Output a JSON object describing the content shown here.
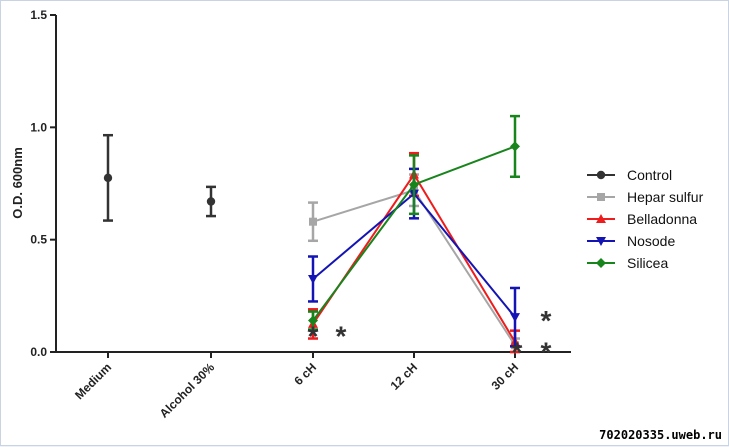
{
  "watermark": "702020335.uweb.ru",
  "chart_data": {
    "type": "line",
    "title": "",
    "xlabel": "",
    "ylabel": "O.D. 600nm",
    "ylim": [
      0,
      1.5
    ],
    "yticks": [
      "0.0",
      "0.5",
      "1.0",
      "1.5"
    ],
    "categories": [
      "Medium",
      "Alcohol 30%",
      "6 cH",
      "12 cH",
      "30 cH"
    ],
    "legend_position": "right",
    "series": [
      {
        "name": "Control",
        "color": "#333333",
        "marker": "circle",
        "points": [
          {
            "x": "Medium",
            "y": 0.775,
            "err": 0.19
          },
          {
            "x": "Alcohol 30%",
            "y": 0.67,
            "err": 0.065
          }
        ]
      },
      {
        "name": "Hepar sulfur",
        "color": "#a6a6a6",
        "marker": "square",
        "points": [
          {
            "x": "6 cH",
            "y": 0.58,
            "err": 0.085
          },
          {
            "x": "12 cH",
            "y": 0.72,
            "err": 0.07
          },
          {
            "x": "30 cH",
            "y": 0.03,
            "err": 0.03
          }
        ]
      },
      {
        "name": "Belladonna",
        "color": "#ee1c1c",
        "marker": "triangle-up",
        "points": [
          {
            "x": "6 cH",
            "y": 0.125,
            "err": 0.065
          },
          {
            "x": "12 cH",
            "y": 0.79,
            "err": 0.095
          },
          {
            "x": "30 cH",
            "y": 0.045,
            "err": 0.05
          }
        ]
      },
      {
        "name": "Nosode",
        "color": "#1414b4",
        "marker": "triangle-down",
        "points": [
          {
            "x": "6 cH",
            "y": 0.325,
            "err": 0.1
          },
          {
            "x": "12 cH",
            "y": 0.705,
            "err": 0.11
          },
          {
            "x": "30 cH",
            "y": 0.155,
            "err": 0.13
          }
        ]
      },
      {
        "name": "Silicea",
        "color": "#18841c",
        "marker": "diamond",
        "points": [
          {
            "x": "6 cH",
            "y": 0.14,
            "err": 0.04
          },
          {
            "x": "12 cH",
            "y": 0.745,
            "err": 0.13
          },
          {
            "x": "30 cH",
            "y": 0.915,
            "err": 0.135
          }
        ]
      }
    ],
    "annotations": [
      {
        "text": "*",
        "x": "6 cH",
        "y": 0.1
      },
      {
        "text": "*",
        "x": "6 cH",
        "y": 0.1
      },
      {
        "text": "*",
        "x": "30 cH",
        "y": 0.03
      },
      {
        "text": "*",
        "x": "30 cH",
        "y": 0.03
      },
      {
        "text": "*",
        "x": "30 cH",
        "y": 0.17
      }
    ]
  }
}
